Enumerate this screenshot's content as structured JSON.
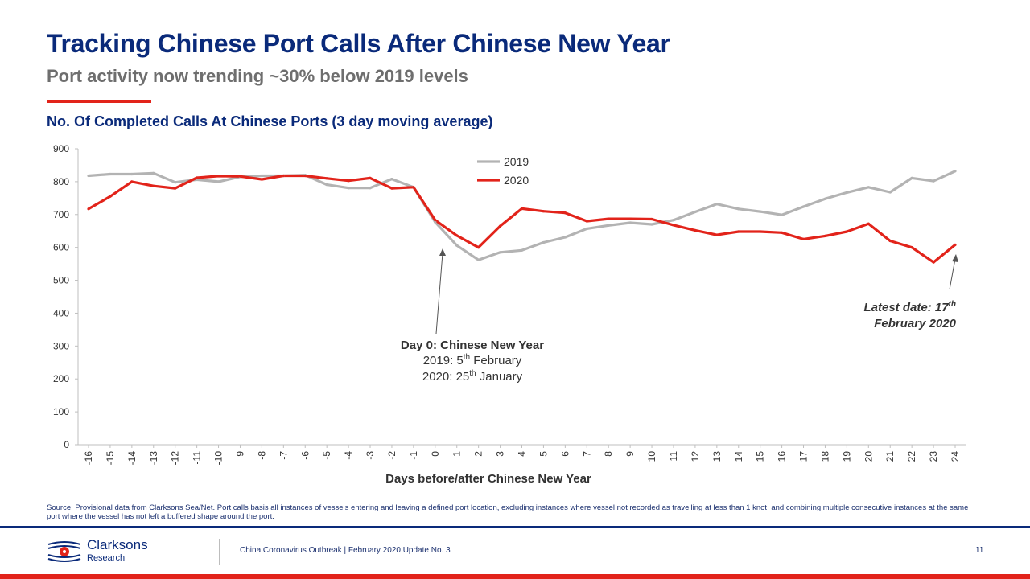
{
  "header": {
    "title": "Tracking Chinese Port Calls After Chinese New Year",
    "subtitle": "Port activity now trending ~30% below 2019 levels",
    "chart_title": "No. Of Completed Calls At Chinese Ports (3 day moving average)"
  },
  "chart_data": {
    "type": "line",
    "xlabel": "Days before/after Chinese New Year",
    "ylabel": "",
    "ylim": [
      0,
      900
    ],
    "yticks": [
      0,
      100,
      200,
      300,
      400,
      500,
      600,
      700,
      800,
      900
    ],
    "grid": false,
    "legend_position": "top-center",
    "x": [
      -16,
      -15,
      -14,
      -13,
      -12,
      -11,
      -10,
      -9,
      -8,
      -7,
      -6,
      -5,
      -4,
      -3,
      -2,
      -1,
      0,
      1,
      2,
      3,
      4,
      5,
      6,
      7,
      8,
      9,
      10,
      11,
      12,
      13,
      14,
      15,
      16,
      17,
      18,
      19,
      20,
      21,
      22,
      23,
      24
    ],
    "series": [
      {
        "name": "2019",
        "color": "#b3b3b3",
        "values": [
          818,
          823,
          823,
          826,
          798,
          806,
          800,
          815,
          818,
          818,
          820,
          791,
          781,
          781,
          808,
          783,
          677,
          606,
          562,
          585,
          591,
          615,
          631,
          657,
          667,
          675,
          670,
          683,
          708,
          732,
          717,
          709,
          699,
          724,
          748,
          767,
          783,
          768,
          811,
          802,
          832
        ]
      },
      {
        "name": "2020",
        "color": "#e2231a",
        "values": [
          717,
          755,
          800,
          787,
          780,
          812,
          817,
          816,
          807,
          818,
          818,
          810,
          803,
          811,
          780,
          783,
          683,
          636,
          600,
          665,
          718,
          710,
          705,
          680,
          687,
          687,
          686,
          668,
          652,
          638,
          648,
          648,
          645,
          625,
          635,
          648,
          672,
          620,
          600,
          555,
          608
        ]
      }
    ],
    "annotations": {
      "cny_heading": "Day 0: Chinese New Year",
      "cny_2019_prefix": "2019: 5",
      "cny_2019_sup": "th",
      "cny_2019_suffix": " February",
      "cny_2020_prefix": "2020: 25",
      "cny_2020_sup": "th",
      "cny_2020_suffix": " January",
      "latest_line1_prefix": "Latest date: 17",
      "latest_line1_sup": "th",
      "latest_line2": "February 2020"
    }
  },
  "source_note": "Source: Provisional data from Clarksons Sea/Net. Port calls basis all instances of vessels entering and leaving a defined port location, excluding instances where vessel not recorded as travelling at less than 1 knot, and combining multiple consecutive instances at the same port where the vessel has not left a buffered shape around the port.",
  "footer": {
    "brand": "Clarksons",
    "brand_sub": "Research",
    "text": "China Coronavirus Outbreak | February 2020 Update No. 3",
    "page": "11"
  },
  "colors": {
    "navy": "#0a2a7a",
    "red": "#e2231a",
    "grey": "#b3b3b3"
  }
}
